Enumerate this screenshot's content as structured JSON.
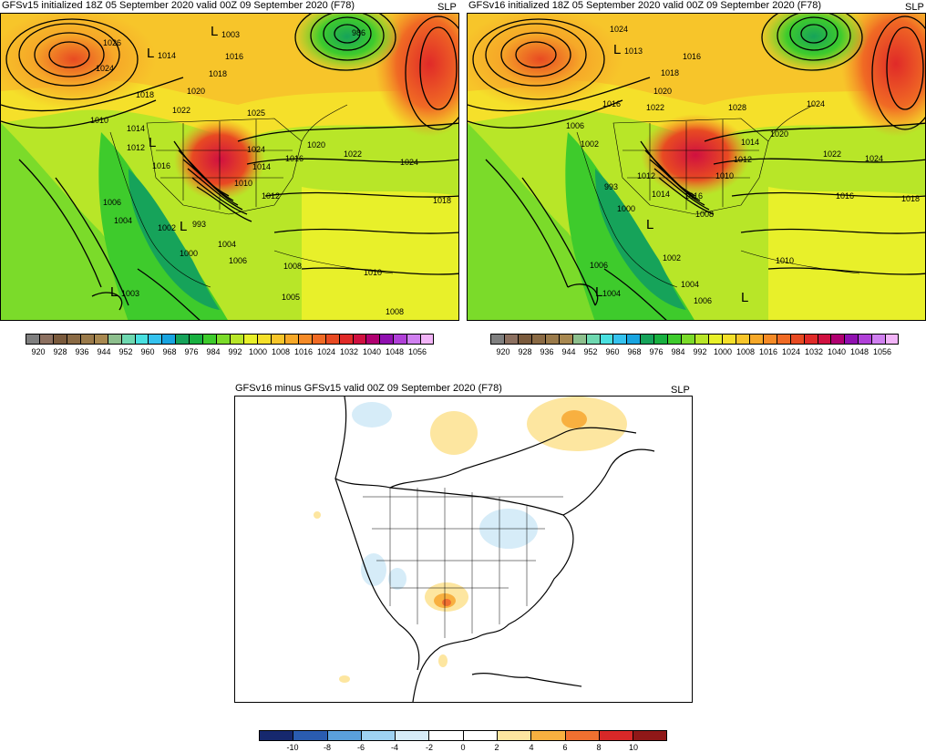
{
  "panels": [
    {
      "title": "GFSv15 initialized 18Z 05 September 2020 valid 00Z 09 September 2020 (F78)",
      "variable": "SLP",
      "contour_labels": [
        "1026",
        "1024",
        "1014",
        "1003",
        "1016",
        "1018",
        "1020",
        "1022",
        "986",
        "1018",
        "1010",
        "1014",
        "1012",
        "1016",
        "1024",
        "1022",
        "1024",
        "1018",
        "1006",
        "1004",
        "1002",
        "993",
        "1000",
        "1004",
        "1006",
        "1008",
        "1003",
        "1005",
        "1010",
        "1008",
        "1012",
        "1014",
        "1010",
        "1016",
        "1020",
        "1025"
      ],
      "low_markers": [
        "L",
        "L",
        "L",
        "L",
        "L"
      ]
    },
    {
      "title": "GFSv16 initialized 18Z 05 September 2020 valid 00Z 09 September 2020 (F78)",
      "variable": "SLP",
      "contour_labels": [
        "1024",
        "1013",
        "1016",
        "1018",
        "1020",
        "1022",
        "1028",
        "1024",
        "1006",
        "1002",
        "1016",
        "1014",
        "1012",
        "1010",
        "993",
        "1000",
        "1012",
        "1014",
        "1016",
        "1008",
        "1022",
        "1024",
        "1018",
        "1016",
        "1006",
        "1004",
        "1002",
        "1004",
        "1006",
        "1010",
        "1020"
      ],
      "low_markers": [
        "L",
        "L",
        "L",
        "L"
      ]
    },
    {
      "title": "GFSv16 minus GFSv15 valid 00Z 09 September 2020 (F78)",
      "variable": "SLP"
    }
  ],
  "slp_colorbar": {
    "ticks": [
      "920",
      "928",
      "936",
      "944",
      "952",
      "960",
      "968",
      "976",
      "984",
      "992",
      "1000",
      "1008",
      "1016",
      "1024",
      "1032",
      "1040",
      "1048",
      "1056"
    ],
    "colors": [
      "#7f7f7f",
      "#8c7060",
      "#7a5a3c",
      "#8a6a44",
      "#9a7a4a",
      "#a88850",
      "#8dbf8d",
      "#6ed8b0",
      "#49e0e0",
      "#35c2ee",
      "#18a4e0",
      "#16a35a",
      "#18b040",
      "#3ecb2c",
      "#7bdb2a",
      "#b8e628",
      "#e8f02a",
      "#f5e02a",
      "#f7c52a",
      "#f6a828",
      "#f58a26",
      "#f06a24",
      "#e84a22",
      "#e02a28",
      "#d01040",
      "#b00070",
      "#9010b0",
      "#b040d8",
      "#d080f0",
      "#f2b4f8"
    ]
  },
  "diff_colorbar": {
    "ticks": [
      "-10",
      "-8",
      "-6",
      "-4",
      "-2",
      "0",
      "2",
      "4",
      "6",
      "8",
      "10"
    ],
    "colors": [
      "#16286e",
      "#2a5cb0",
      "#5aa0dc",
      "#9ed2f2",
      "#d6ecf8",
      "#ffffff",
      "#ffffff",
      "#fde6a0",
      "#f8b040",
      "#f07030",
      "#d82828",
      "#901818"
    ]
  }
}
